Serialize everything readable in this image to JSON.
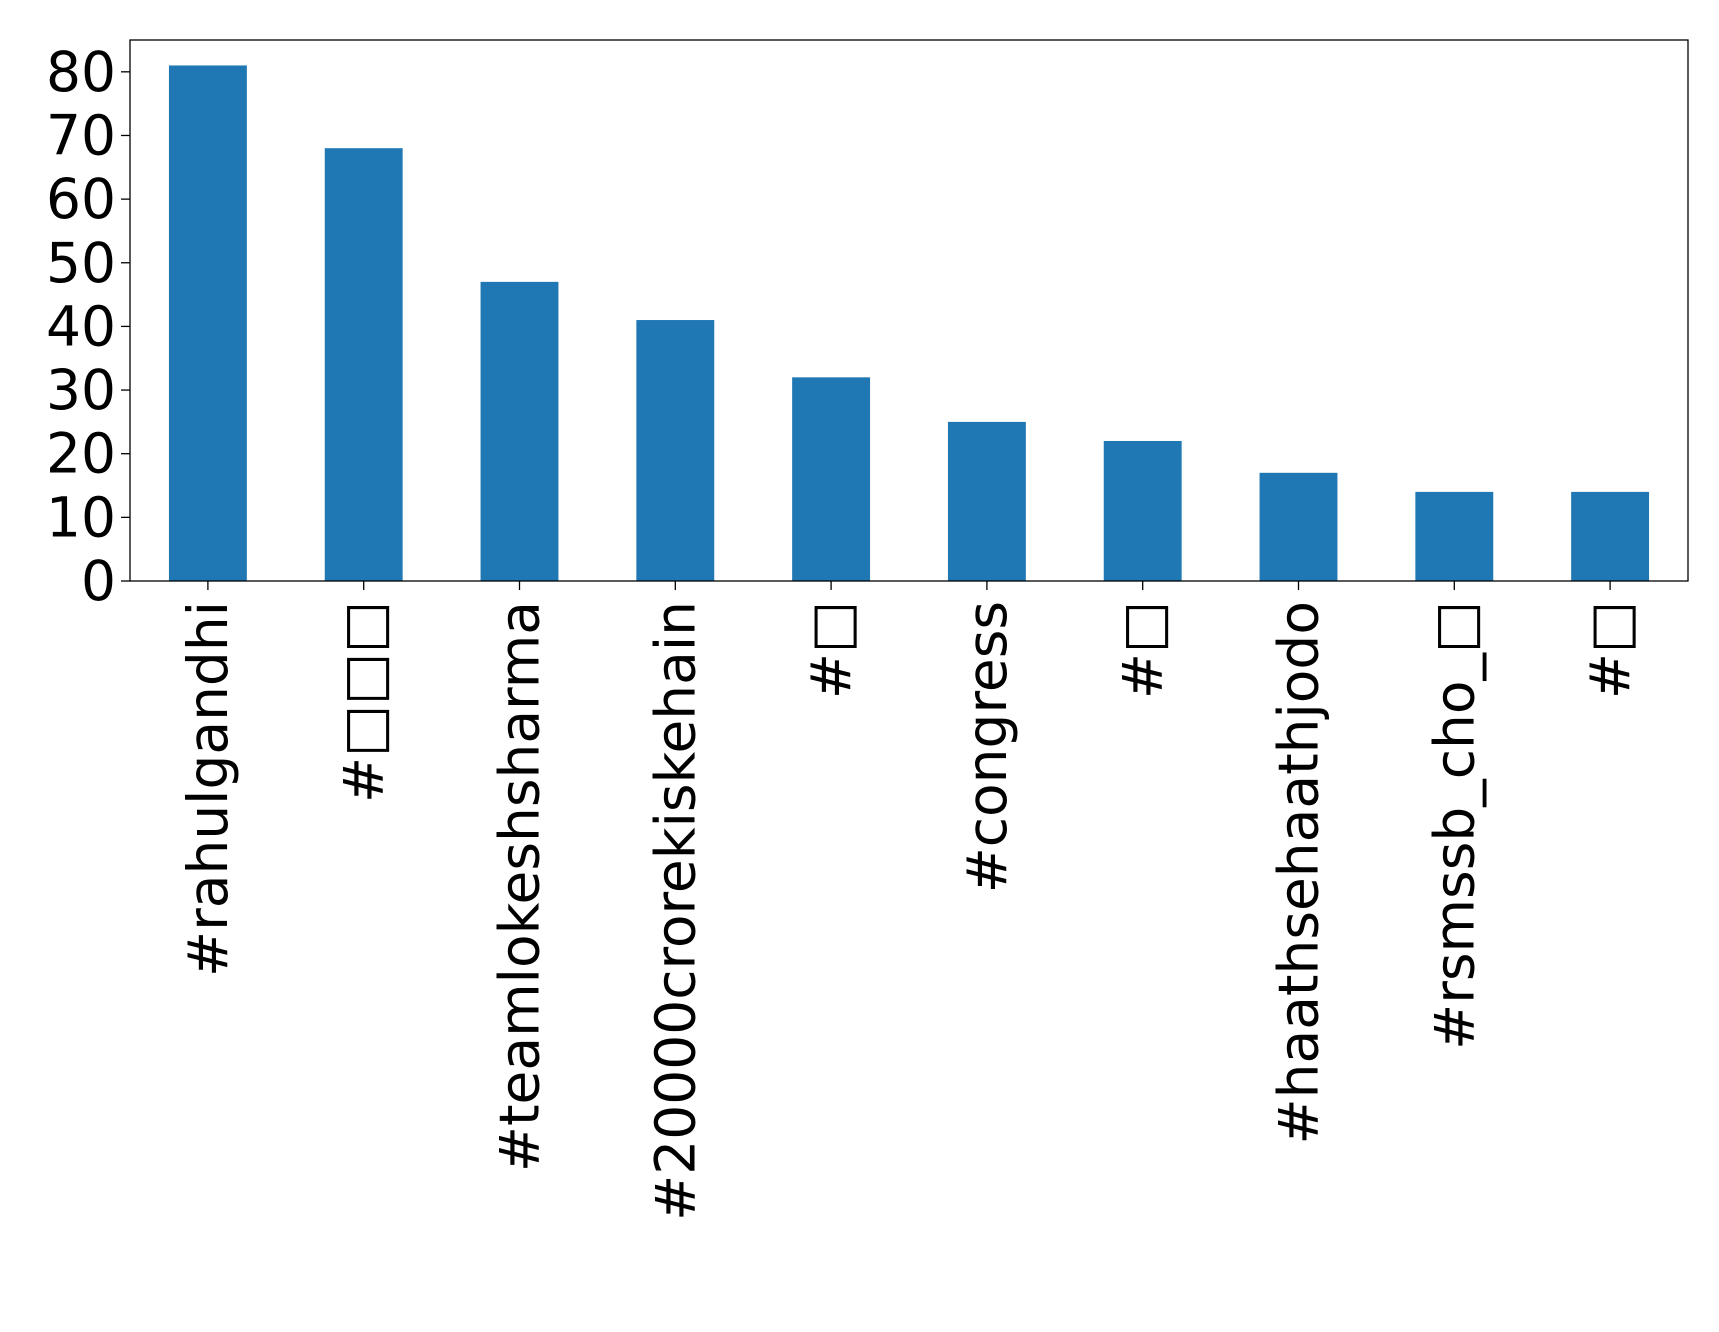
{
  "chart_data": {
    "type": "bar",
    "title": "",
    "xlabel": "",
    "ylabel": "",
    "categories": [
      "#rahulgandhi",
      "#□□□",
      "#teamlokeshsharma",
      "#20000crorekiskehain",
      "#□",
      "#congress",
      "#□",
      "#haathsehaathjodo",
      "#rsmssb_cho_□",
      "#□"
    ],
    "values": [
      81,
      68,
      47,
      41,
      32,
      25,
      22,
      17,
      14,
      14
    ],
    "ylim": [
      0,
      85
    ],
    "yticks": [
      0,
      10,
      20,
      30,
      40,
      50,
      60,
      70,
      80
    ],
    "grid": false,
    "legend": "none",
    "bar_color": "#1f77b4"
  }
}
